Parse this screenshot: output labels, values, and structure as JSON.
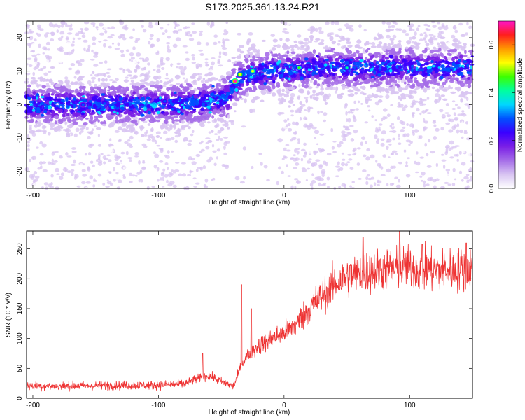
{
  "title": "S173.2025.361.13.24.R21",
  "chart_data": [
    {
      "type": "heatmap",
      "xlabel": "Height of straight line (km)",
      "ylabel": "Frequency (Hz)",
      "xlim": [
        -205,
        150
      ],
      "ylim": [
        -25,
        25
      ],
      "xticks": [
        -200,
        -100,
        0,
        100
      ],
      "yticks": [
        -20,
        -10,
        0,
        10,
        20
      ],
      "colorbar": {
        "label": "Normalized spectral amplitude",
        "range": [
          0.0,
          0.7
        ],
        "ticks": [
          0.0,
          0.2,
          0.4,
          0.6
        ],
        "colors": [
          "#ffffff",
          "#d8c4f2",
          "#a56de8",
          "#7a1fe6",
          "#3a00ff",
          "#0050ff",
          "#00d7ff",
          "#00ff9f",
          "#3cff00",
          "#ffff00",
          "#ff9900",
          "#ff1e1e",
          "#ff14c8"
        ]
      },
      "ridge": [
        {
          "x": -205,
          "y": 0
        },
        {
          "x": -150,
          "y": 0
        },
        {
          "x": -100,
          "y": 0
        },
        {
          "x": -60,
          "y": 1
        },
        {
          "x": -45,
          "y": 2
        },
        {
          "x": -40,
          "y": 6
        },
        {
          "x": -30,
          "y": 9
        },
        {
          "x": -10,
          "y": 10
        },
        {
          "x": 30,
          "y": 11
        },
        {
          "x": 80,
          "y": 11
        },
        {
          "x": 150,
          "y": 11
        }
      ],
      "hotspots": [
        {
          "x": -39,
          "y": 7,
          "amplitude": 0.7
        },
        {
          "x": -35,
          "y": 9,
          "amplitude": 0.55
        },
        {
          "x": -25,
          "y": 10,
          "amplitude": 0.5
        },
        {
          "x": 12,
          "y": 11,
          "amplitude": 0.45
        },
        {
          "x": 50,
          "y": 11,
          "amplitude": 0.4
        },
        {
          "x": -160,
          "y": 0,
          "amplitude": 0.3
        },
        {
          "x": -95,
          "y": 1,
          "amplitude": 0.3
        }
      ]
    },
    {
      "type": "line",
      "xlabel": "Height of straight line (km)",
      "ylabel": "SNR (10 * v/v)",
      "xlim": [
        -205,
        150
      ],
      "ylim": [
        0,
        280
      ],
      "xticks": [
        -200,
        -100,
        0,
        100
      ],
      "yticks": [
        0,
        50,
        100,
        150,
        200,
        250
      ],
      "color": "#ee3333",
      "trend": [
        {
          "x": -205,
          "y": 20
        },
        {
          "x": -150,
          "y": 21
        },
        {
          "x": -100,
          "y": 22
        },
        {
          "x": -80,
          "y": 24
        },
        {
          "x": -70,
          "y": 32
        },
        {
          "x": -60,
          "y": 38
        },
        {
          "x": -50,
          "y": 28
        },
        {
          "x": -40,
          "y": 20
        },
        {
          "x": -35,
          "y": 50
        },
        {
          "x": -30,
          "y": 70
        },
        {
          "x": -20,
          "y": 88
        },
        {
          "x": -10,
          "y": 100
        },
        {
          "x": 0,
          "y": 110
        },
        {
          "x": 10,
          "y": 125
        },
        {
          "x": 20,
          "y": 150
        },
        {
          "x": 30,
          "y": 172
        },
        {
          "x": 40,
          "y": 190
        },
        {
          "x": 50,
          "y": 203
        },
        {
          "x": 60,
          "y": 210
        },
        {
          "x": 80,
          "y": 215
        },
        {
          "x": 100,
          "y": 218
        },
        {
          "x": 120,
          "y": 213
        },
        {
          "x": 150,
          "y": 216
        }
      ],
      "spikes": [
        {
          "x": -34,
          "y": 190
        },
        {
          "x": -26,
          "y": 150
        },
        {
          "x": -65,
          "y": 75
        },
        {
          "x": 63,
          "y": 270
        },
        {
          "x": 92,
          "y": 285
        },
        {
          "x": 110,
          "y": 258
        },
        {
          "x": 145,
          "y": 260
        }
      ]
    }
  ]
}
